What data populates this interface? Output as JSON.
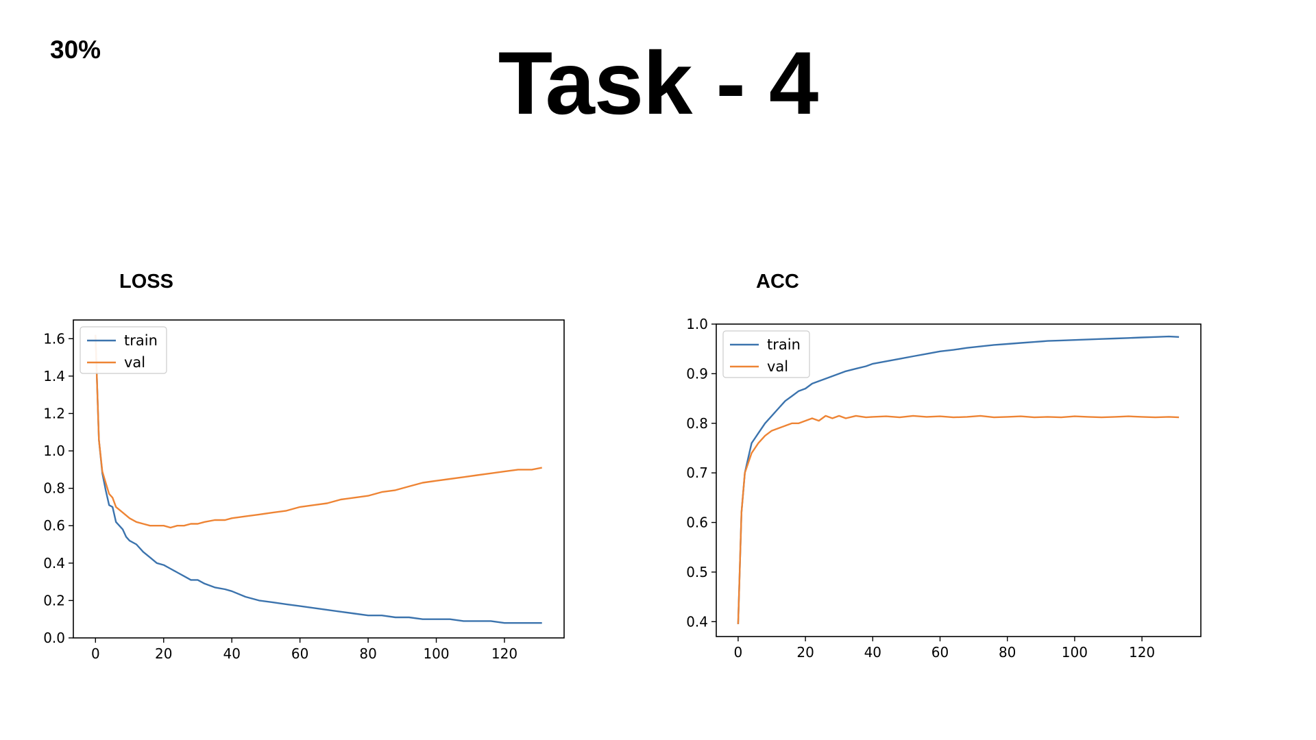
{
  "slide": {
    "corner_label": "30%",
    "title": "Task - 4"
  },
  "colors": {
    "train": "#3b73ad",
    "val": "#ee8434"
  },
  "chart_data": [
    {
      "id": "loss",
      "heading": "LOSS",
      "type": "line",
      "xlim": [
        -6.5,
        137.5
      ],
      "ylim": [
        0.0,
        1.7
      ],
      "xticks": [
        0,
        20,
        40,
        60,
        80,
        100,
        120
      ],
      "yticks": [
        0.0,
        0.2,
        0.4,
        0.6,
        0.8,
        1.0,
        1.2,
        1.4,
        1.6
      ],
      "ytick_labels": [
        "0.0",
        "0.2",
        "0.4",
        "0.6",
        "0.8",
        "1.0",
        "1.2",
        "1.4",
        "1.6"
      ],
      "legend_position": "upper-left",
      "grid": false,
      "series": [
        {
          "name": "train",
          "color": "#3b73ad",
          "x": [
            0,
            1,
            2,
            3,
            4,
            5,
            6,
            7,
            8,
            9,
            10,
            12,
            14,
            16,
            18,
            20,
            22,
            24,
            26,
            28,
            30,
            32,
            35,
            38,
            40,
            44,
            48,
            52,
            56,
            60,
            64,
            68,
            72,
            76,
            80,
            84,
            88,
            92,
            96,
            100,
            104,
            108,
            112,
            116,
            120,
            124,
            128,
            131
          ],
          "y": [
            1.62,
            1.06,
            0.88,
            0.79,
            0.71,
            0.7,
            0.62,
            0.6,
            0.58,
            0.54,
            0.52,
            0.5,
            0.46,
            0.43,
            0.4,
            0.39,
            0.37,
            0.35,
            0.33,
            0.31,
            0.31,
            0.29,
            0.27,
            0.26,
            0.25,
            0.22,
            0.2,
            0.19,
            0.18,
            0.17,
            0.16,
            0.15,
            0.14,
            0.13,
            0.12,
            0.12,
            0.11,
            0.11,
            0.1,
            0.1,
            0.1,
            0.09,
            0.09,
            0.09,
            0.08,
            0.08,
            0.08,
            0.08
          ]
        },
        {
          "name": "val",
          "color": "#ee8434",
          "x": [
            0,
            1,
            2,
            3,
            4,
            5,
            6,
            8,
            10,
            12,
            14,
            16,
            18,
            20,
            22,
            24,
            26,
            28,
            30,
            32,
            35,
            38,
            40,
            44,
            48,
            52,
            56,
            60,
            64,
            68,
            72,
            76,
            80,
            84,
            88,
            92,
            96,
            100,
            104,
            108,
            112,
            116,
            120,
            124,
            128,
            131
          ],
          "y": [
            1.62,
            1.06,
            0.89,
            0.83,
            0.77,
            0.75,
            0.7,
            0.67,
            0.64,
            0.62,
            0.61,
            0.6,
            0.6,
            0.6,
            0.59,
            0.6,
            0.6,
            0.61,
            0.61,
            0.62,
            0.63,
            0.63,
            0.64,
            0.65,
            0.66,
            0.67,
            0.68,
            0.7,
            0.71,
            0.72,
            0.74,
            0.75,
            0.76,
            0.78,
            0.79,
            0.81,
            0.83,
            0.84,
            0.85,
            0.86,
            0.87,
            0.88,
            0.89,
            0.9,
            0.9,
            0.91
          ]
        }
      ]
    },
    {
      "id": "acc",
      "heading": "ACC",
      "type": "line",
      "xlim": [
        -6.5,
        137.5
      ],
      "ylim": [
        0.37,
        1.0
      ],
      "xticks": [
        0,
        20,
        40,
        60,
        80,
        100,
        120
      ],
      "yticks": [
        0.4,
        0.5,
        0.6,
        0.7,
        0.8,
        0.9,
        1.0
      ],
      "ytick_labels": [
        "0.4",
        "0.5",
        "0.6",
        "0.7",
        "0.8",
        "0.9",
        "1.0"
      ],
      "legend_position": "upper-left",
      "grid": false,
      "series": [
        {
          "name": "train",
          "color": "#3b73ad",
          "x": [
            0,
            1,
            2,
            3,
            4,
            5,
            6,
            8,
            10,
            12,
            14,
            16,
            18,
            20,
            22,
            24,
            26,
            28,
            30,
            32,
            35,
            38,
            40,
            44,
            48,
            52,
            56,
            60,
            64,
            68,
            72,
            76,
            80,
            84,
            88,
            92,
            96,
            100,
            104,
            108,
            112,
            116,
            120,
            124,
            128,
            131
          ],
          "y": [
            0.395,
            0.62,
            0.7,
            0.73,
            0.76,
            0.77,
            0.78,
            0.8,
            0.815,
            0.83,
            0.845,
            0.855,
            0.865,
            0.87,
            0.88,
            0.885,
            0.89,
            0.895,
            0.9,
            0.905,
            0.91,
            0.915,
            0.92,
            0.925,
            0.93,
            0.935,
            0.94,
            0.945,
            0.948,
            0.952,
            0.955,
            0.958,
            0.96,
            0.962,
            0.964,
            0.966,
            0.967,
            0.968,
            0.969,
            0.97,
            0.971,
            0.972,
            0.973,
            0.974,
            0.975,
            0.974
          ]
        },
        {
          "name": "val",
          "color": "#ee8434",
          "x": [
            0,
            1,
            2,
            3,
            4,
            5,
            6,
            8,
            10,
            12,
            14,
            16,
            18,
            20,
            22,
            24,
            26,
            28,
            30,
            32,
            35,
            38,
            40,
            44,
            48,
            52,
            56,
            60,
            64,
            68,
            72,
            76,
            80,
            84,
            88,
            92,
            96,
            100,
            104,
            108,
            112,
            116,
            120,
            124,
            128,
            131
          ],
          "y": [
            0.395,
            0.62,
            0.7,
            0.72,
            0.74,
            0.75,
            0.76,
            0.775,
            0.785,
            0.79,
            0.795,
            0.8,
            0.8,
            0.805,
            0.81,
            0.805,
            0.815,
            0.81,
            0.815,
            0.81,
            0.815,
            0.812,
            0.813,
            0.814,
            0.812,
            0.815,
            0.813,
            0.814,
            0.812,
            0.813,
            0.815,
            0.812,
            0.813,
            0.814,
            0.812,
            0.813,
            0.812,
            0.814,
            0.813,
            0.812,
            0.813,
            0.814,
            0.813,
            0.812,
            0.813,
            0.812
          ]
        }
      ]
    }
  ]
}
